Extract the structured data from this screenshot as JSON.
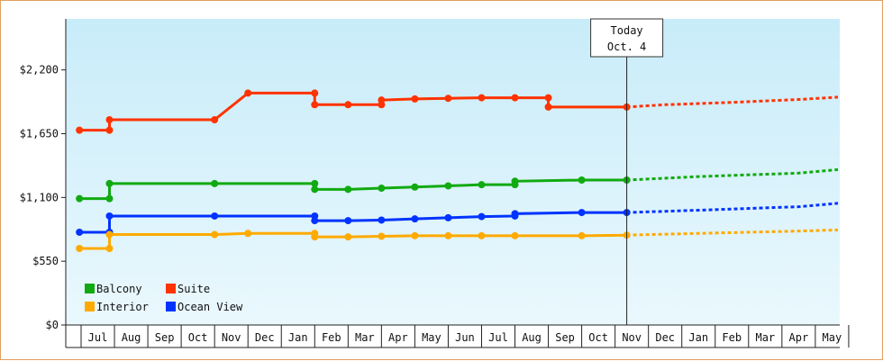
{
  "chart_data": {
    "type": "line",
    "ylim": [
      0,
      2640
    ],
    "yticks": [
      {
        "value": 0,
        "label": "$0"
      },
      {
        "value": 550,
        "label": "$550"
      },
      {
        "value": 1100,
        "label": "$1,100"
      },
      {
        "value": 1650,
        "label": "$1,650"
      },
      {
        "value": 2200,
        "label": "$2,200"
      }
    ],
    "x_months": [
      "Jul",
      "Aug",
      "Sep",
      "Oct",
      "Nov",
      "Dec",
      "Jan",
      "Feb",
      "Mar",
      "Apr",
      "May",
      "Jun",
      "Jul",
      "Aug",
      "Sep",
      "Oct",
      "Nov",
      "Dec",
      "Jan",
      "Feb",
      "Mar",
      "Apr",
      "May"
    ],
    "today": {
      "line1": "Today",
      "line2": "Oct. 4",
      "x": 15.85
    },
    "legend_position": "bottom-left",
    "series": [
      {
        "name": "Suite",
        "color": "#ff3300",
        "points": [
          [
            -0.55,
            1680
          ],
          [
            0.35,
            1680
          ],
          [
            0.35,
            1770
          ],
          [
            3.5,
            1770
          ],
          [
            4.5,
            2000
          ],
          [
            6.5,
            2000
          ],
          [
            6.5,
            1900
          ],
          [
            7.5,
            1900
          ],
          [
            8.5,
            1900
          ],
          [
            8.5,
            1940
          ],
          [
            9.5,
            1950
          ],
          [
            10.5,
            1955
          ],
          [
            11.5,
            1960
          ],
          [
            12.5,
            1960
          ],
          [
            13.5,
            1960
          ],
          [
            13.5,
            1880
          ],
          [
            15.85,
            1880
          ]
        ],
        "projection": [
          [
            15.85,
            1880
          ],
          [
            17,
            1900
          ],
          [
            19,
            1920
          ],
          [
            21,
            1945
          ],
          [
            23,
            1965
          ]
        ]
      },
      {
        "name": "Balcony",
        "color": "#11aa11",
        "points": [
          [
            -0.55,
            1090
          ],
          [
            0.35,
            1090
          ],
          [
            0.35,
            1220
          ],
          [
            3.5,
            1220
          ],
          [
            6.5,
            1220
          ],
          [
            6.5,
            1170
          ],
          [
            7.5,
            1170
          ],
          [
            8.5,
            1180
          ],
          [
            9.5,
            1190
          ],
          [
            10.5,
            1200
          ],
          [
            11.5,
            1210
          ],
          [
            12.5,
            1210
          ],
          [
            12.5,
            1240
          ],
          [
            14.5,
            1250
          ],
          [
            15.85,
            1250
          ]
        ],
        "projection": [
          [
            15.85,
            1250
          ],
          [
            18,
            1280
          ],
          [
            21,
            1310
          ],
          [
            23,
            1340
          ]
        ]
      },
      {
        "name": "Ocean View",
        "color": "#0033ff",
        "points": [
          [
            -0.55,
            800
          ],
          [
            0.35,
            800
          ],
          [
            0.35,
            940
          ],
          [
            3.5,
            940
          ],
          [
            6.5,
            940
          ],
          [
            6.5,
            900
          ],
          [
            7.5,
            900
          ],
          [
            8.5,
            905
          ],
          [
            9.5,
            915
          ],
          [
            10.5,
            925
          ],
          [
            11.5,
            935
          ],
          [
            12.5,
            940
          ],
          [
            12.5,
            960
          ],
          [
            14.5,
            970
          ],
          [
            15.85,
            970
          ]
        ],
        "projection": [
          [
            15.85,
            970
          ],
          [
            18,
            990
          ],
          [
            21,
            1020
          ],
          [
            23,
            1050
          ]
        ]
      },
      {
        "name": "Interior",
        "color": "#ffaa00",
        "points": [
          [
            -0.55,
            660
          ],
          [
            0.35,
            660
          ],
          [
            0.35,
            780
          ],
          [
            3.5,
            780
          ],
          [
            4.5,
            790
          ],
          [
            6.5,
            790
          ],
          [
            6.5,
            760
          ],
          [
            7.5,
            760
          ],
          [
            8.5,
            765
          ],
          [
            9.5,
            770
          ],
          [
            10.5,
            770
          ],
          [
            11.5,
            770
          ],
          [
            12.5,
            770
          ],
          [
            14.5,
            770
          ],
          [
            15.85,
            775
          ]
        ],
        "projection": [
          [
            15.85,
            775
          ],
          [
            18,
            790
          ],
          [
            21,
            810
          ],
          [
            23,
            820
          ]
        ]
      }
    ]
  },
  "legend": [
    {
      "name": "Balcony",
      "color": "#11aa11"
    },
    {
      "name": "Suite",
      "color": "#ff3300"
    },
    {
      "name": "Interior",
      "color": "#ffaa00"
    },
    {
      "name": "Ocean View",
      "color": "#0033ff"
    }
  ]
}
